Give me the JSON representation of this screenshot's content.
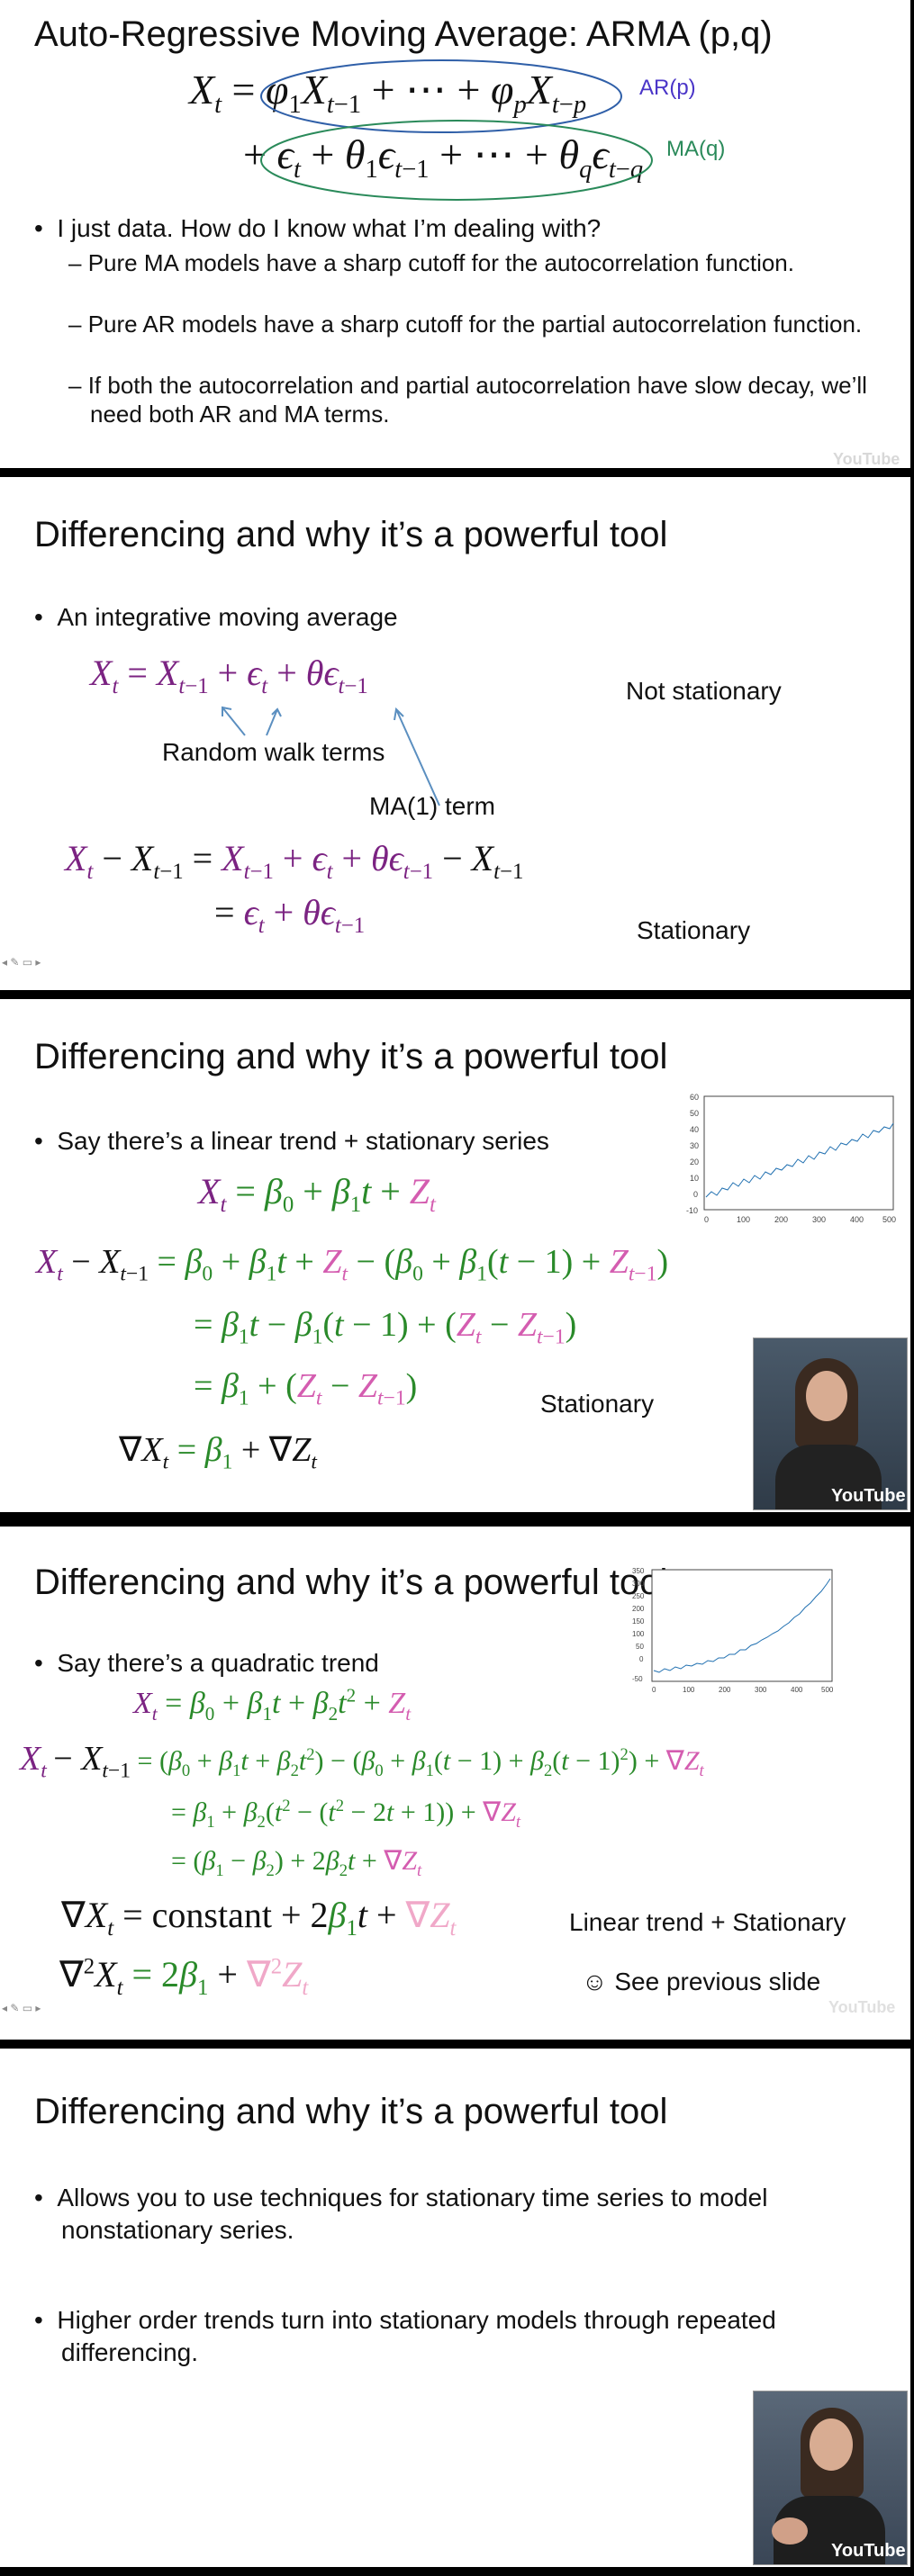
{
  "video_watermark": "YouTube",
  "slides": [
    {
      "title": "Auto-Regressive Moving Average: ARMA (p,q)",
      "ar_label": "AR(p)",
      "ma_label": "MA(q)",
      "bullet": "I just data. How do I know what I’m dealing with?",
      "sub_bullets": [
        "Pure MA models have a sharp cutoff for the autocorrelation function.",
        "Pure AR models have a sharp cutoff for the partial autocorrelation function.",
        "If both the autocorrelation and partial autocorrelation have slow decay, we’ll need both AR and MA terms."
      ]
    },
    {
      "title": "Differencing and why it’s a powerful tool",
      "bullet": "An integrative moving average",
      "not_stationary": "Not stationary",
      "random_walk_label": "Random walk terms",
      "ma1_label": "MA(1) term",
      "stationary": "Stationary"
    },
    {
      "title": "Differencing and why it’s a powerful tool",
      "bullet": "Say there’s a linear trend + stationary series",
      "stationary": "Stationary",
      "plot": {
        "x_ticks": [
          "0",
          "100",
          "200",
          "300",
          "400",
          "500"
        ],
        "y_ticks": [
          "60",
          "50",
          "40",
          "30",
          "20",
          "10",
          "0",
          "-10"
        ]
      }
    },
    {
      "title": "Differencing and why it’s a powerful tool",
      "bullet": "Say there’s a quadratic trend",
      "linear_trend_note": "Linear trend + Stationary",
      "see_previous": "☺ See previous slide",
      "plot": {
        "x_ticks": [
          "0",
          "100",
          "200",
          "300",
          "400",
          "500"
        ],
        "y_ticks": [
          "350",
          "300",
          "250",
          "200",
          "150",
          "100",
          "50",
          "0",
          "-50"
        ]
      }
    },
    {
      "title": "Differencing and why it’s a powerful tool",
      "bullets": [
        "Allows you to use techniques for stationary time series to model nonstationary series.",
        "Higher order trends turn into stationary models through repeated differencing."
      ]
    }
  ],
  "colors": {
    "purple": "#7b2382",
    "green": "#2a8a2a",
    "magenta": "#d45db0",
    "ar_ellipse": "#2f5fa8",
    "ma_ellipse": "#2a8a5a"
  }
}
